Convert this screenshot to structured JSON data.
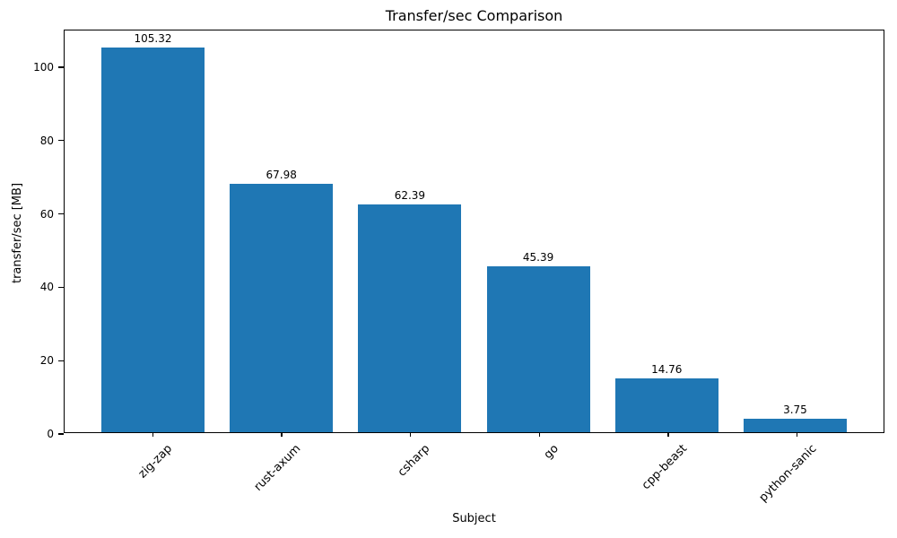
{
  "chart_data": {
    "type": "bar",
    "title": "Transfer/sec Comparison",
    "xlabel": "Subject",
    "ylabel": "transfer/sec [MB]",
    "categories": [
      "zig-zap",
      "rust-axum",
      "csharp",
      "go",
      "cpp-beast",
      "python-sanic"
    ],
    "values": [
      105.32,
      67.98,
      62.39,
      45.39,
      14.76,
      3.75
    ],
    "value_labels": [
      "105.32",
      "67.98",
      "62.39",
      "45.39",
      "14.76",
      "3.75"
    ],
    "y_ticks": [
      0,
      20,
      40,
      60,
      80,
      100
    ],
    "ylim": [
      0,
      110
    ],
    "bar_color": "#1f77b4",
    "axis_color": "#000000",
    "text_color": "#000000",
    "background_color": "#ffffff",
    "grid": false,
    "legend": "none",
    "x_tick_label_rotation_deg": 45
  }
}
